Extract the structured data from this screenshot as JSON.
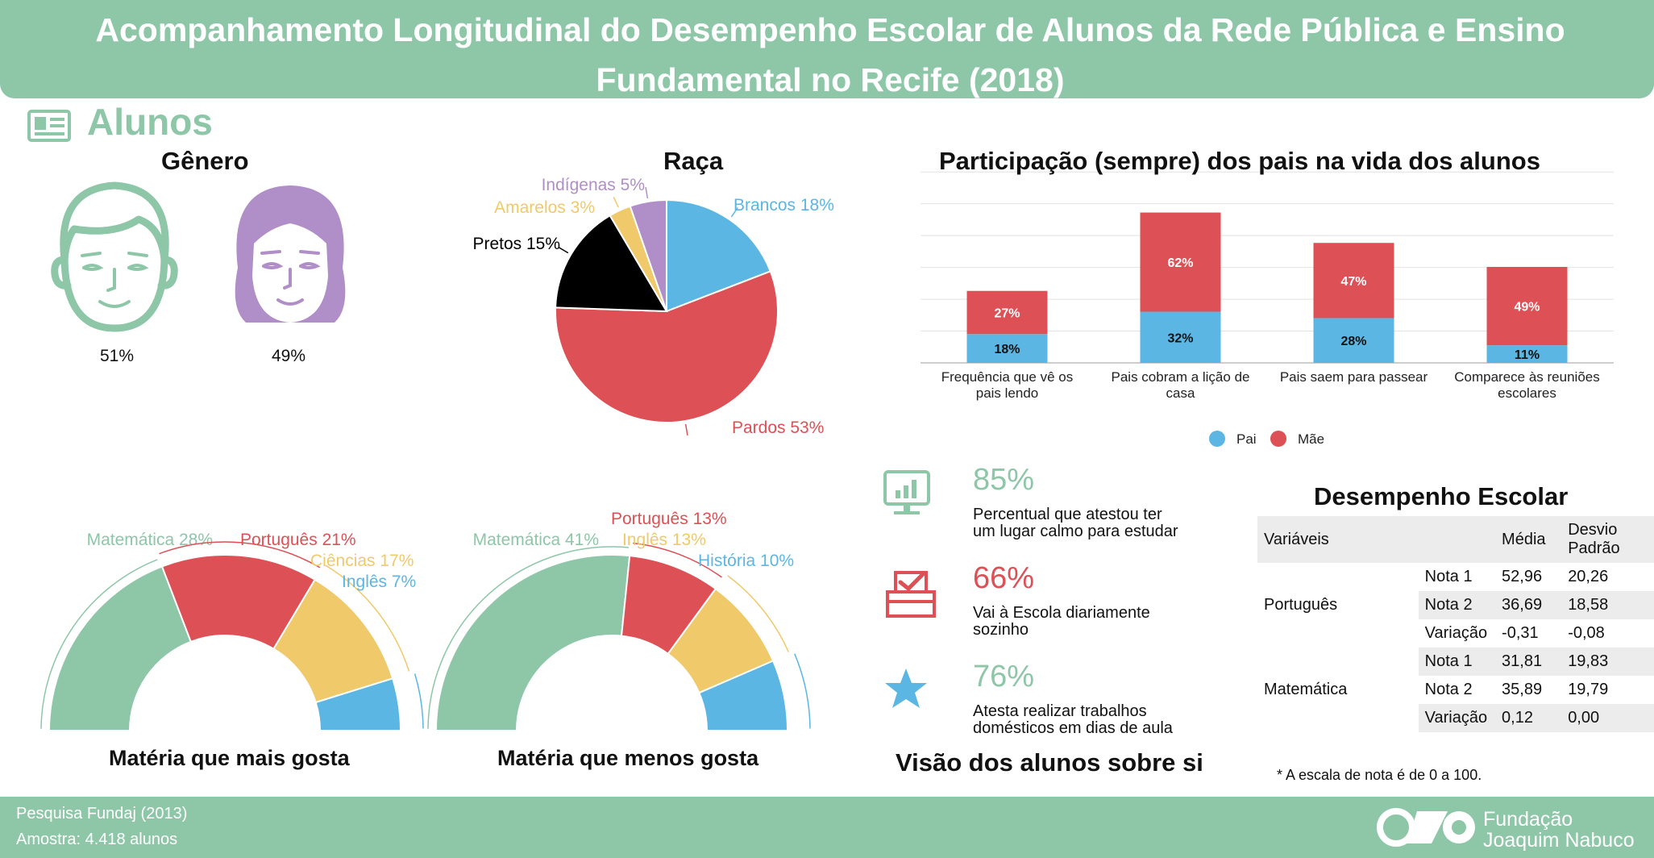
{
  "header": {
    "title": "Acompanhamento Longitudinal do Desempenho Escolar de Alunos da Rede Pública e Ensino Fundamental no Recife (2018)"
  },
  "section": {
    "title": "Alunos",
    "icon": "id-card-icon"
  },
  "colors": {
    "green": "#8ec6a8",
    "red": "#dd5055",
    "yellow": "#f0c96a",
    "blue": "#5bb6e3",
    "purple": "#b08ec8",
    "black": "#000000"
  },
  "genero": {
    "title": "Gênero",
    "male_pct": "51%",
    "female_pct": "49%"
  },
  "chart_data": [
    {
      "id": "raca",
      "type": "pie",
      "title": "Raça",
      "labels": [
        "Brancos 18%",
        "Pardos 53%",
        "Pretos 15%",
        "Amarelos 3%",
        "Indígenas 5%"
      ],
      "values": [
        18,
        53,
        15,
        3,
        5
      ]
    },
    {
      "id": "participacao",
      "type": "bar",
      "title": "Participação (sempre) dos pais na vida dos alunos",
      "categories": [
        "Frequência que vê os pais lendo",
        "Pais cobram a lição de casa",
        "Pais saem para passear",
        "Comparece às reuniões escolares"
      ],
      "series": [
        {
          "name": "Pai",
          "values": [
            18,
            32,
            28,
            11
          ],
          "labels": [
            "18%",
            "32%",
            "28%",
            "11%"
          ]
        },
        {
          "name": "Mãe",
          "values": [
            27,
            62,
            47,
            49
          ],
          "labels": [
            "27%",
            "62%",
            "47%",
            "49%"
          ]
        }
      ],
      "ylim": [
        0,
        120
      ],
      "legend": "bottom"
    },
    {
      "id": "mais_gosta",
      "type": "pie",
      "title": "Matéria que mais gosta",
      "labels": [
        "Matemática 28%",
        "Português 21%",
        "Ciências 17%",
        "Inglês 7%"
      ],
      "values": [
        28,
        21,
        17,
        7
      ]
    },
    {
      "id": "menos_gosta",
      "type": "pie",
      "title": "Matéria que menos gosta",
      "labels": [
        "Matemática 41%",
        "Português 13%",
        "Inglês 13%",
        "História 10%"
      ],
      "values": [
        41,
        13,
        13,
        10
      ]
    }
  ],
  "visao": {
    "title": "Visão dos alunos sobre si",
    "items": [
      {
        "pct": "85%",
        "desc1": "Percentual que atestou ter",
        "desc2": "um lugar calmo para estudar"
      },
      {
        "pct": "66%",
        "desc1": "Vai à Escola diariamente",
        "desc2": "sozinho"
      },
      {
        "pct": "76%",
        "desc1": "Atesta realizar trabalhos",
        "desc2": "domésticos em dias de aula"
      }
    ]
  },
  "desempenho": {
    "title": "Desempenho Escolar",
    "headers": {
      "var": "Variáveis",
      "media": "Média",
      "desvio1": "Desvio",
      "desvio2": "Padrão"
    },
    "groups": [
      {
        "name": "Português",
        "rows": [
          {
            "label": "Nota 1",
            "media": "52,96",
            "desvio": "20,26"
          },
          {
            "label": "Nota 2",
            "media": "36,69",
            "desvio": "18,58"
          },
          {
            "label": "Variação",
            "media": "-0,31",
            "desvio": "-0,08"
          }
        ]
      },
      {
        "name": "Matemática",
        "rows": [
          {
            "label": "Nota 1",
            "media": "31,81",
            "desvio": "19,83"
          },
          {
            "label": "Nota 2",
            "media": "35,89",
            "desvio": "19,79"
          },
          {
            "label": "Variação",
            "media": "0,12",
            "desvio": "0,00"
          }
        ]
      }
    ],
    "note": "* A escala de nota é de 0 a 100."
  },
  "footer": {
    "line1": "Pesquisa Fundaj (2013)",
    "line2": "Amostra: 4.418 alunos",
    "logo_line1": "Fundação",
    "logo_line2": "Joaquim Nabuco"
  }
}
